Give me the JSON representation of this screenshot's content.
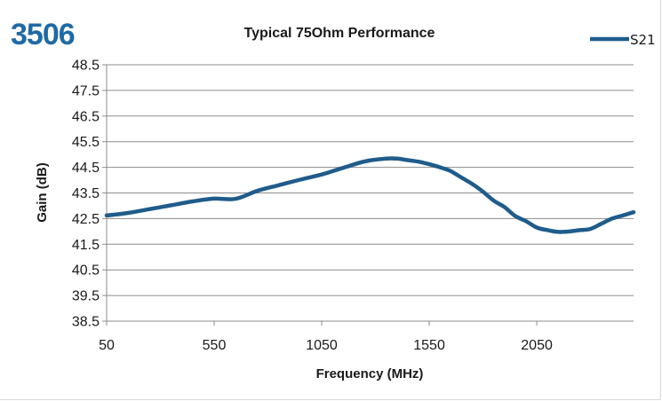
{
  "part_number": "3506",
  "colors": {
    "series": "#1f5c8b",
    "grid": "#8c8c8c",
    "brand": "#1f6aa5"
  },
  "chart_data": {
    "type": "line",
    "title": "Typical 75Ohm Performance",
    "xlabel": "Frequency (MHz)",
    "ylabel": "Gain (dB)",
    "xlim": [
      50,
      2500
    ],
    "ylim": [
      38.5,
      48.5
    ],
    "x_ticks": [
      50,
      550,
      1050,
      1550,
      2050
    ],
    "x_tick_labels": [
      "50",
      "550",
      "1050",
      "1550",
      "2050"
    ],
    "y_ticks": [
      48.5,
      47.5,
      46.5,
      45.5,
      44.5,
      43.5,
      42.5,
      41.5,
      40.5,
      39.5,
      38.5
    ],
    "y_tick_labels": [
      "48.5",
      "47.5",
      "46.5",
      "45.5",
      "44.5",
      "43.5",
      "42.5",
      "41.5",
      "40.5",
      "39.5",
      "38.5"
    ],
    "grid": "horizontal",
    "legend_position": "top-right",
    "series": [
      {
        "name": "S21",
        "x": [
          50,
          150,
          250,
          350,
          450,
          550,
          650,
          750,
          850,
          950,
          1050,
          1150,
          1250,
          1350,
          1400,
          1450,
          1500,
          1550,
          1600,
          1650,
          1700,
          1750,
          1800,
          1850,
          1900,
          1950,
          2000,
          2050,
          2100,
          2150,
          2200,
          2250,
          2300,
          2350,
          2400,
          2450,
          2500
        ],
        "y": [
          42.62,
          42.72,
          42.87,
          43.02,
          43.17,
          43.28,
          43.27,
          43.58,
          43.8,
          44.02,
          44.22,
          44.48,
          44.73,
          44.84,
          44.84,
          44.78,
          44.72,
          44.62,
          44.5,
          44.35,
          44.1,
          43.85,
          43.55,
          43.2,
          42.95,
          42.6,
          42.4,
          42.15,
          42.05,
          41.98,
          42.0,
          42.05,
          42.1,
          42.3,
          42.5,
          42.62,
          42.75
        ]
      }
    ]
  }
}
